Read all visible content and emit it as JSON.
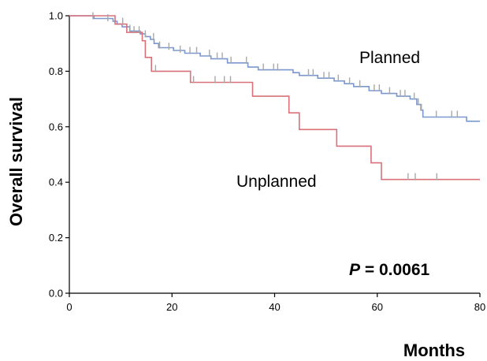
{
  "chart_data": {
    "type": "line",
    "step": true,
    "xlabel": "Months",
    "ylabel": "Overall survival",
    "xlim": [
      0,
      80
    ],
    "ylim": [
      0,
      1.0
    ],
    "xticks": [
      0,
      20,
      40,
      60,
      80
    ],
    "yticks": [
      0.0,
      0.2,
      0.4,
      0.6,
      0.8,
      1.0
    ],
    "xtick_labels": [
      "0",
      "20",
      "40",
      "60",
      "80"
    ],
    "ytick_labels": [
      "0.0",
      "0.2",
      "0.4",
      "0.6",
      "0.8",
      "1.0"
    ],
    "grid": false,
    "annotation": {
      "p_symbol": "P",
      "p_rest": " = 0.0061"
    },
    "censor_color": "#a8a8a8",
    "series": [
      {
        "name": "Planned",
        "color": "#7b97cf",
        "steps": [
          [
            0,
            1.0
          ],
          [
            4.8,
            0.99
          ],
          [
            8.5,
            0.98
          ],
          [
            9.3,
            0.97
          ],
          [
            10.3,
            0.96
          ],
          [
            11.8,
            0.945
          ],
          [
            13.8,
            0.935
          ],
          [
            14.8,
            0.925
          ],
          [
            15.8,
            0.915
          ],
          [
            16.5,
            0.9
          ],
          [
            17.4,
            0.885
          ],
          [
            20.3,
            0.875
          ],
          [
            22.5,
            0.865
          ],
          [
            25.5,
            0.855
          ],
          [
            27.6,
            0.845
          ],
          [
            30.8,
            0.83
          ],
          [
            34.8,
            0.815
          ],
          [
            36.8,
            0.805
          ],
          [
            43.6,
            0.795
          ],
          [
            44.8,
            0.785
          ],
          [
            48.4,
            0.775
          ],
          [
            51.6,
            0.765
          ],
          [
            53.6,
            0.755
          ],
          [
            55.4,
            0.745
          ],
          [
            58.4,
            0.73
          ],
          [
            60.8,
            0.72
          ],
          [
            63.8,
            0.71
          ],
          [
            66.4,
            0.7
          ],
          [
            67.7,
            0.68
          ],
          [
            68.5,
            0.66
          ],
          [
            68.9,
            0.635
          ],
          [
            77.4,
            0.62
          ],
          [
            80,
            0.62
          ]
        ],
        "censored": [
          [
            4.6,
            0.99
          ],
          [
            7.5,
            0.983
          ],
          [
            11.8,
            0.945
          ],
          [
            14.8,
            0.925
          ],
          [
            16.4,
            0.915
          ],
          [
            17.6,
            0.885
          ],
          [
            19.4,
            0.88
          ],
          [
            21.6,
            0.87
          ],
          [
            23.5,
            0.865
          ],
          [
            24.8,
            0.865
          ],
          [
            27.3,
            0.855
          ],
          [
            28.8,
            0.845
          ],
          [
            29.8,
            0.845
          ],
          [
            31.5,
            0.83
          ],
          [
            34.5,
            0.83
          ],
          [
            37.8,
            0.805
          ],
          [
            39.8,
            0.805
          ],
          [
            40.6,
            0.805
          ],
          [
            46.6,
            0.785
          ],
          [
            47.5,
            0.785
          ],
          [
            49.6,
            0.775
          ],
          [
            50.6,
            0.775
          ],
          [
            52.4,
            0.765
          ],
          [
            54.6,
            0.755
          ],
          [
            56.6,
            0.745
          ],
          [
            59.4,
            0.73
          ],
          [
            60.4,
            0.73
          ],
          [
            62.4,
            0.72
          ],
          [
            64.5,
            0.71
          ],
          [
            65.4,
            0.71
          ],
          [
            67.2,
            0.7
          ],
          [
            68.0,
            0.68
          ],
          [
            68.6,
            0.66
          ],
          [
            71.5,
            0.635
          ],
          [
            74.5,
            0.635
          ],
          [
            75.6,
            0.635
          ]
        ]
      },
      {
        "name": "Unplanned",
        "color": "#d9707a",
        "steps": [
          [
            0,
            1.0
          ],
          [
            8.9,
            0.97
          ],
          [
            11.2,
            0.94
          ],
          [
            14.2,
            0.91
          ],
          [
            14.8,
            0.85
          ],
          [
            16.0,
            0.8
          ],
          [
            23.6,
            0.76
          ],
          [
            35.7,
            0.71
          ],
          [
            42.8,
            0.65
          ],
          [
            44.8,
            0.59
          ],
          [
            52.1,
            0.53
          ],
          [
            58.8,
            0.47
          ],
          [
            60.8,
            0.41
          ],
          [
            80,
            0.41
          ]
        ],
        "censored": [
          [
            10.4,
            0.97
          ],
          [
            12.6,
            0.94
          ],
          [
            13.6,
            0.94
          ],
          [
            16.8,
            0.8
          ],
          [
            24.2,
            0.76
          ],
          [
            28.4,
            0.76
          ],
          [
            30.2,
            0.76
          ],
          [
            31.4,
            0.76
          ],
          [
            66.0,
            0.41
          ],
          [
            67.4,
            0.41
          ],
          [
            71.6,
            0.41
          ]
        ]
      }
    ]
  }
}
